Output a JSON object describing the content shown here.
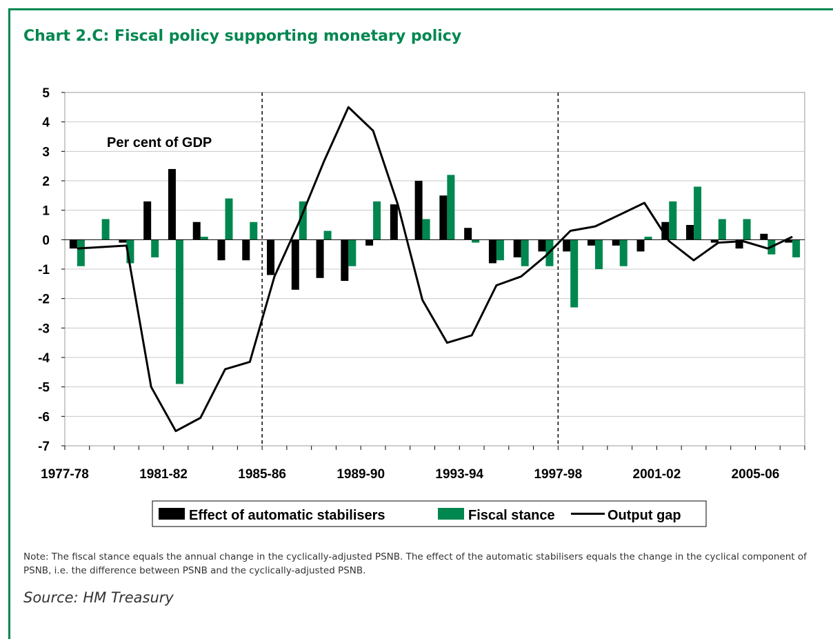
{
  "title": "Chart 2.C: Fiscal policy supporting monetary policy",
  "note": "Note: The fiscal stance equals the annual change in the cyclically-adjusted PSNB. The effect of the automatic stabilisers equals the change in the cyclical component of PSNB, i.e. the difference between PSNB and the cyclically-adjusted PSNB.",
  "source": "Source: HM Treasury",
  "colors": {
    "frame": "#00874f",
    "stabilisers": "#000000",
    "fiscal": "#00874f",
    "output_gap": "#000000",
    "grid": "#c8c8c8"
  },
  "chart_data": {
    "type": "bar",
    "title": "",
    "ylabel": "",
    "annotation": "Per cent of GDP",
    "ylim": [
      -7,
      5
    ],
    "yticks": [
      5,
      4,
      3,
      2,
      1,
      0,
      -1,
      -2,
      -3,
      -4,
      -5,
      -6,
      -7
    ],
    "grid": true,
    "legend_position": "bottom",
    "categories": [
      "1977-78",
      "1978-79",
      "1979-80",
      "1980-81",
      "1981-82",
      "1982-83",
      "1983-84",
      "1984-85",
      "1985-86",
      "1986-87",
      "1987-88",
      "1988-89",
      "1989-90",
      "1990-91",
      "1991-92",
      "1992-93",
      "1993-94",
      "1994-95",
      "1995-96",
      "1996-97",
      "1997-98",
      "1998-99",
      "1999-00",
      "2000-01",
      "2001-02",
      "2002-03",
      "2003-04",
      "2004-05",
      "2005-06",
      "2006-07"
    ],
    "xtick_labels": [
      "1977-78",
      "1981-82",
      "1985-86",
      "1989-90",
      "1993-94",
      "1997-98",
      "2001-02",
      "2005-06"
    ],
    "vertical_lines": [
      "1985-86",
      "1997-98"
    ],
    "series": [
      {
        "name": "Effect of automatic stabilisers",
        "type": "bar",
        "values": [
          -0.3,
          0,
          -0.1,
          1.3,
          2.4,
          0.6,
          -0.7,
          -0.7,
          -1.2,
          -1.7,
          -1.3,
          -1.4,
          -0.2,
          1.2,
          2.0,
          1.5,
          0.4,
          -0.8,
          -0.6,
          -0.4,
          -0.4,
          -0.2,
          -0.2,
          -0.4,
          0.6,
          0.5,
          -0.1,
          -0.3,
          0.2,
          -0.1
        ]
      },
      {
        "name": "Fiscal stance",
        "type": "bar",
        "values": [
          -0.9,
          0.7,
          -0.8,
          -0.6,
          -4.9,
          0.1,
          1.4,
          0.6,
          0,
          1.3,
          0.3,
          -0.9,
          1.3,
          0,
          0.7,
          2.2,
          -0.1,
          -0.7,
          -0.9,
          -0.9,
          -2.3,
          -1.0,
          -0.9,
          0.1,
          1.3,
          1.8,
          0.7,
          0.7,
          -0.5,
          -0.6
        ]
      },
      {
        "name": "Output gap",
        "type": "line",
        "values": [
          -0.3,
          -0.25,
          -0.2,
          -5.0,
          -6.5,
          -6.05,
          -4.4,
          -4.15,
          -1.25,
          0.6,
          2.65,
          4.5,
          3.7,
          1.2,
          -2.05,
          -3.5,
          -3.25,
          -1.55,
          -1.25,
          -0.55,
          0.3,
          0.45,
          0.85,
          1.25,
          -0.05,
          -0.7,
          -0.1,
          -0.05,
          -0.3,
          0.1
        ]
      }
    ]
  }
}
